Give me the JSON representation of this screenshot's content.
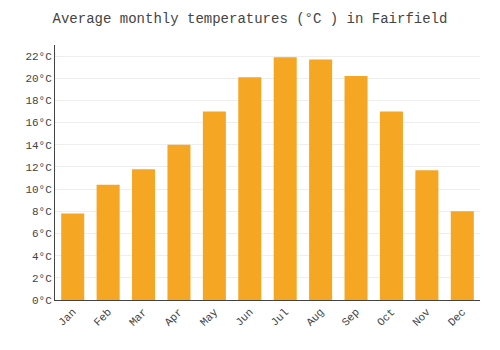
{
  "chart_data": {
    "type": "bar",
    "title": "Average monthly temperatures (°C ) in Fairfield",
    "categories": [
      "Jan",
      "Feb",
      "Mar",
      "Apr",
      "May",
      "Jun",
      "Jul",
      "Aug",
      "Sep",
      "Oct",
      "Nov",
      "Dec"
    ],
    "values": [
      7.8,
      10.4,
      11.8,
      14.0,
      17.0,
      20.1,
      21.9,
      21.7,
      20.2,
      17.0,
      11.7,
      8.0
    ],
    "color": "#F5A623",
    "ylim": [
      0,
      23
    ],
    "yticks": [
      {
        "value": 0,
        "label": "0°C"
      },
      {
        "value": 2,
        "label": "2°C"
      },
      {
        "value": 4,
        "label": "4°C"
      },
      {
        "value": 6,
        "label": "6°C"
      },
      {
        "value": 8,
        "label": "8°C"
      },
      {
        "value": 10,
        "label": "10°C"
      },
      {
        "value": 12,
        "label": "12°C"
      },
      {
        "value": 14,
        "label": "14°C"
      },
      {
        "value": 16,
        "label": "16°C"
      },
      {
        "value": 18,
        "label": "18°C"
      },
      {
        "value": 20,
        "label": "20°C"
      },
      {
        "value": 22,
        "label": "22°C"
      }
    ],
    "grid": true
  }
}
